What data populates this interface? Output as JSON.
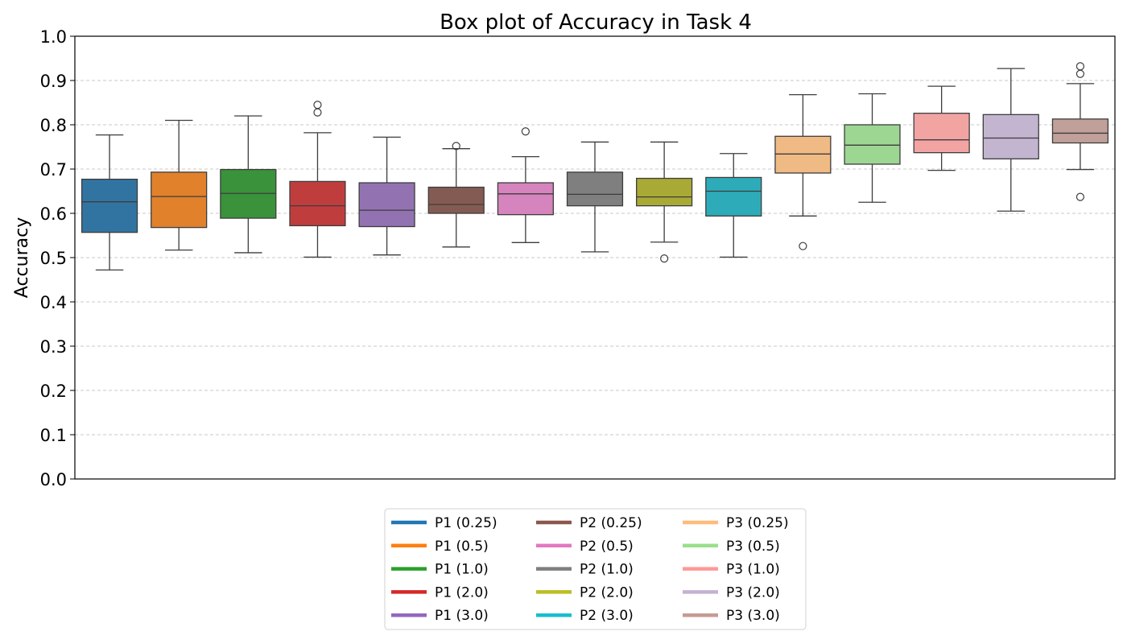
{
  "chart_data": {
    "type": "box",
    "title": "Box plot of Accuracy in Task 4",
    "ylabel": "Accuracy",
    "xlabel": "",
    "ylim": [
      0.0,
      1.0
    ],
    "yticks": [
      "0.0",
      "0.1",
      "0.2",
      "0.3",
      "0.4",
      "0.5",
      "0.6",
      "0.7",
      "0.8",
      "0.9",
      "1.0"
    ],
    "grid": "y dashed",
    "legend_placement": "bottom-center",
    "legend_columns": 3,
    "series": [
      {
        "name": "P1 (0.25)",
        "color": "#1f77b4",
        "box_color": "#3274a1",
        "min": 0.472,
        "q1": 0.557,
        "median": 0.626,
        "q3": 0.677,
        "max": 0.777,
        "outliers": []
      },
      {
        "name": "P1 (0.5)",
        "color": "#ff7f0e",
        "box_color": "#e1812c",
        "min": 0.517,
        "q1": 0.568,
        "median": 0.638,
        "q3": 0.693,
        "max": 0.81,
        "outliers": []
      },
      {
        "name": "P1 (1.0)",
        "color": "#2ca02c",
        "box_color": "#3a923a",
        "min": 0.511,
        "q1": 0.589,
        "median": 0.645,
        "q3": 0.699,
        "max": 0.82,
        "outliers": []
      },
      {
        "name": "P1 (2.0)",
        "color": "#d62728",
        "box_color": "#c03d3e",
        "min": 0.501,
        "q1": 0.572,
        "median": 0.617,
        "q3": 0.672,
        "max": 0.782,
        "outliers": [
          0.845,
          0.828
        ]
      },
      {
        "name": "P1 (3.0)",
        "color": "#9467bd",
        "box_color": "#9372b2",
        "min": 0.506,
        "q1": 0.57,
        "median": 0.607,
        "q3": 0.669,
        "max": 0.772,
        "outliers": []
      },
      {
        "name": "P2 (0.25)",
        "color": "#8c564b",
        "box_color": "#845b53",
        "min": 0.524,
        "q1": 0.6,
        "median": 0.62,
        "q3": 0.659,
        "max": 0.746,
        "outliers": [
          0.752
        ]
      },
      {
        "name": "P2 (0.5)",
        "color": "#e377c2",
        "box_color": "#d684bd",
        "min": 0.534,
        "q1": 0.597,
        "median": 0.644,
        "q3": 0.669,
        "max": 0.728,
        "outliers": [
          0.785
        ]
      },
      {
        "name": "P2 (1.0)",
        "color": "#7f7f7f",
        "box_color": "#7f7f7f",
        "min": 0.513,
        "q1": 0.617,
        "median": 0.643,
        "q3": 0.693,
        "max": 0.761,
        "outliers": []
      },
      {
        "name": "P2 (2.0)",
        "color": "#bcbd22",
        "box_color": "#a9aa35",
        "min": 0.535,
        "q1": 0.617,
        "median": 0.637,
        "q3": 0.679,
        "max": 0.761,
        "outliers": [
          0.498
        ]
      },
      {
        "name": "P2 (3.0)",
        "color": "#17becf",
        "box_color": "#2eabb8",
        "min": 0.501,
        "q1": 0.594,
        "median": 0.65,
        "q3": 0.681,
        "max": 0.735,
        "outliers": []
      },
      {
        "name": "P3 (0.25)",
        "color": "#ffbb78",
        "box_color": "#f0ba84",
        "min": 0.594,
        "q1": 0.691,
        "median": 0.734,
        "q3": 0.774,
        "max": 0.868,
        "outliers": [
          0.526
        ]
      },
      {
        "name": "P3 (0.5)",
        "color": "#98df8a",
        "box_color": "#9dd692",
        "min": 0.625,
        "q1": 0.711,
        "median": 0.754,
        "q3": 0.8,
        "max": 0.87,
        "outliers": []
      },
      {
        "name": "P3 (1.0)",
        "color": "#ff9896",
        "box_color": "#f2a4a3",
        "min": 0.697,
        "q1": 0.737,
        "median": 0.766,
        "q3": 0.826,
        "max": 0.887,
        "outliers": []
      },
      {
        "name": "P3 (2.0)",
        "color": "#c5b0d5",
        "box_color": "#c3b4d0",
        "min": 0.605,
        "q1": 0.723,
        "median": 0.77,
        "q3": 0.823,
        "max": 0.927,
        "outliers": []
      },
      {
        "name": "P3 (3.0)",
        "color": "#c49c94",
        "box_color": "#c0a099",
        "min": 0.699,
        "q1": 0.759,
        "median": 0.781,
        "q3": 0.813,
        "max": 0.893,
        "outliers": [
          0.932,
          0.915,
          0.637
        ]
      }
    ]
  }
}
